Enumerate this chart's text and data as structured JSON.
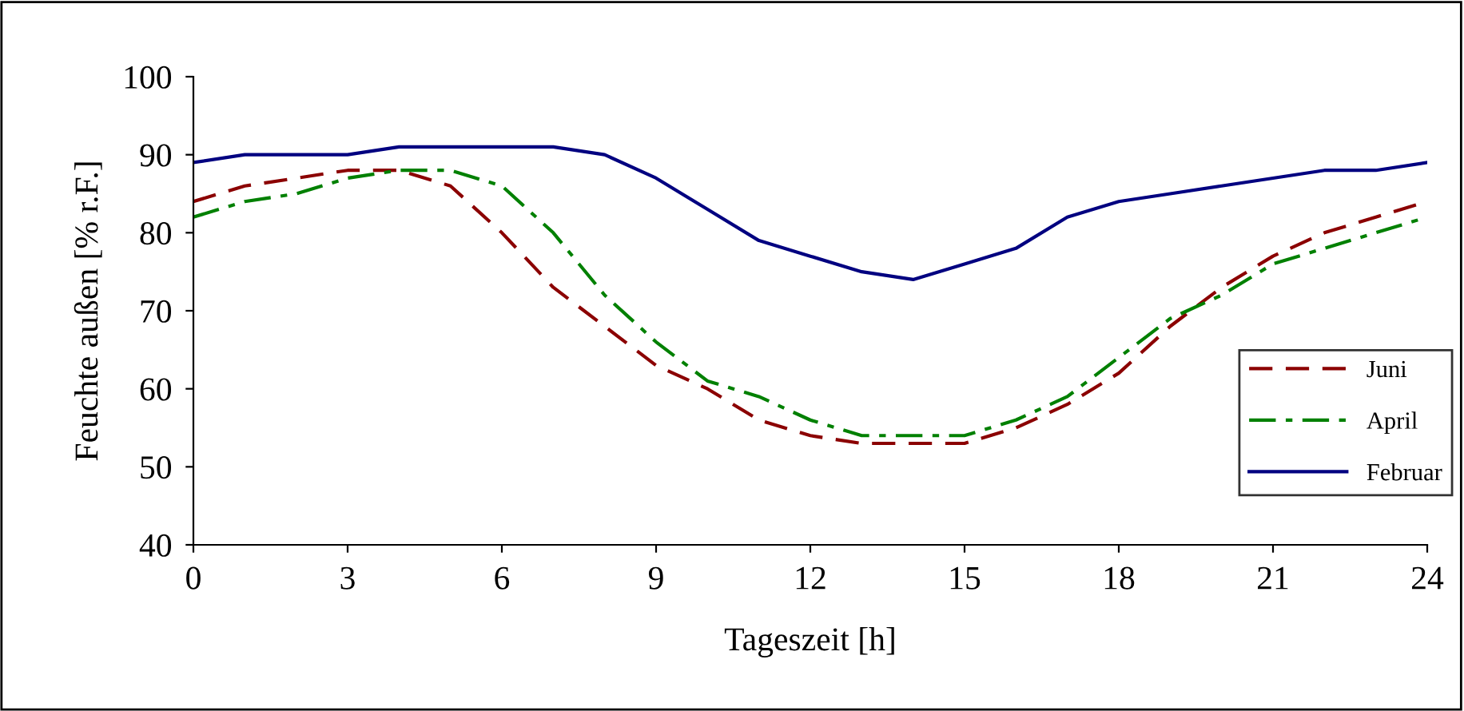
{
  "chart_data": {
    "type": "line",
    "xlabel": "Tageszeit [h]",
    "ylabel": "Feuchte außen [% r.F.]",
    "x": [
      0,
      1,
      2,
      3,
      4,
      5,
      6,
      7,
      8,
      9,
      10,
      11,
      12,
      13,
      14,
      15,
      16,
      17,
      18,
      19,
      20,
      21,
      22,
      23,
      24
    ],
    "series": [
      {
        "name": "Juni",
        "color": "#8b0000",
        "line_style": "dashed",
        "values": [
          84,
          86,
          87,
          88,
          88,
          86,
          80,
          73,
          68,
          63,
          60,
          56,
          54,
          53,
          53,
          53,
          55,
          58,
          62,
          68,
          73,
          77,
          80,
          82,
          84
        ]
      },
      {
        "name": "April",
        "color": "#008000",
        "line_style": "dashdot",
        "values": [
          82,
          84,
          85,
          87,
          88,
          88,
          86,
          80,
          72,
          66,
          61,
          59,
          56,
          54,
          54,
          54,
          56,
          59,
          64,
          69,
          72,
          76,
          78,
          80,
          82
        ]
      },
      {
        "name": "Februar",
        "color": "#000080",
        "line_style": "solid",
        "values": [
          89,
          90,
          90,
          90,
          91,
          91,
          91,
          91,
          90,
          87,
          83,
          79,
          77,
          75,
          74,
          76,
          78,
          82,
          84,
          85,
          86,
          87,
          88,
          88,
          89
        ]
      }
    ],
    "xlim": [
      0,
      24
    ],
    "xticks": [
      0,
      3,
      6,
      9,
      12,
      15,
      18,
      21,
      24
    ],
    "ylim": [
      40,
      100
    ],
    "yticks": [
      40,
      50,
      60,
      70,
      80,
      90,
      100
    ],
    "grid": false,
    "legend": "right",
    "marker": "none"
  }
}
